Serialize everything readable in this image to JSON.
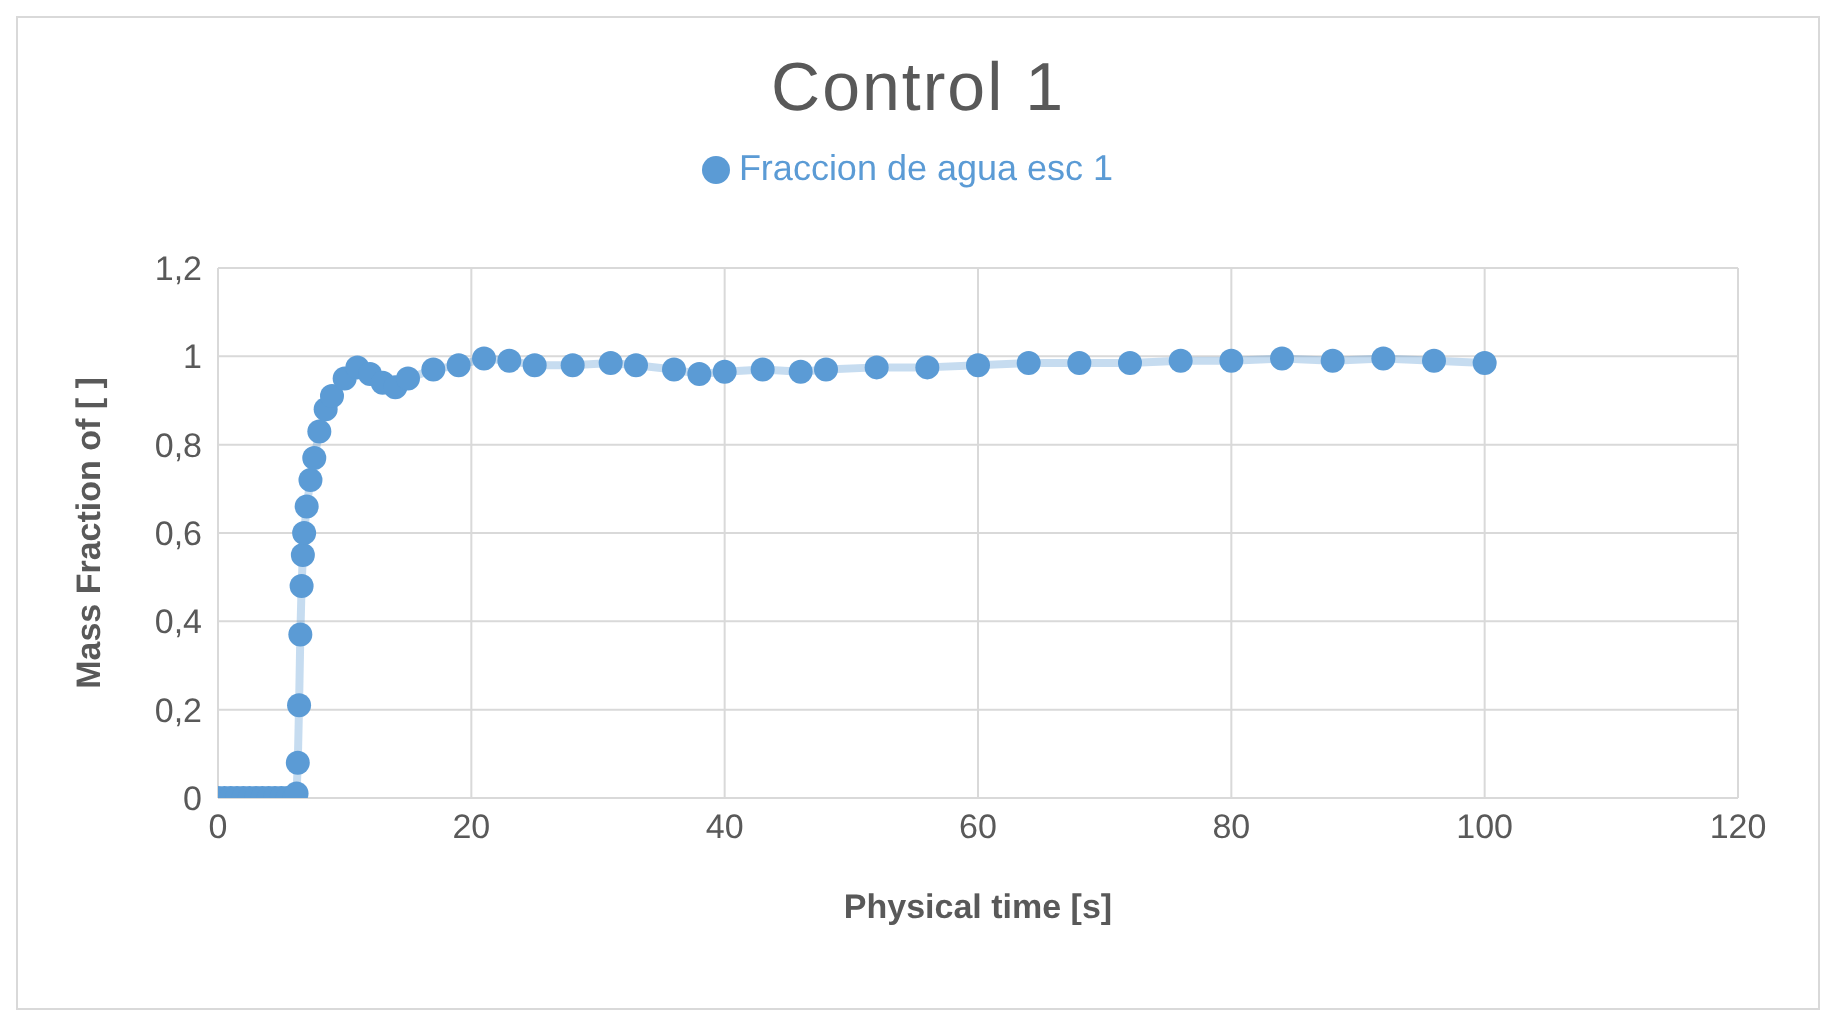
{
  "chart_data": {
    "type": "line",
    "title": "Control 1",
    "xlabel": "Physical time [s]",
    "ylabel": "Mass Fraction of  [ ]",
    "x": [
      0,
      0.5,
      1,
      1.5,
      2,
      2.5,
      3,
      3.5,
      4,
      4.5,
      5,
      5.5,
      6,
      6.2,
      6.3,
      6.4,
      6.5,
      6.6,
      6.7,
      6.8,
      7,
      7.3,
      7.6,
      8,
      8.5,
      9,
      10,
      11,
      12,
      13,
      14,
      15,
      17,
      19,
      21,
      23,
      25,
      28,
      31,
      33,
      36,
      38,
      40,
      43,
      46,
      48,
      52,
      56,
      60,
      64,
      68,
      72,
      76,
      80,
      84,
      88,
      92,
      96,
      100
    ],
    "series": [
      {
        "name": "Fraccion de agua esc 1",
        "color": "#5b9bd5",
        "values": [
          0,
          0,
          0,
          0,
          0,
          0,
          0,
          0,
          0,
          0,
          0,
          0,
          0,
          0.01,
          0.08,
          0.21,
          0.37,
          0.48,
          0.55,
          0.6,
          0.66,
          0.72,
          0.77,
          0.83,
          0.88,
          0.91,
          0.95,
          0.975,
          0.96,
          0.94,
          0.93,
          0.95,
          0.97,
          0.98,
          0.995,
          0.99,
          0.98,
          0.98,
          0.985,
          0.98,
          0.97,
          0.96,
          0.965,
          0.97,
          0.965,
          0.97,
          0.975,
          0.975,
          0.98,
          0.985,
          0.985,
          0.985,
          0.99,
          0.99,
          0.995,
          0.99,
          0.995,
          0.99,
          0.985
        ]
      }
    ],
    "xlim": [
      0,
      120
    ],
    "xticks": [
      0,
      20,
      40,
      60,
      80,
      100,
      120
    ],
    "ylim": [
      0,
      1.2
    ],
    "yticks": [
      0,
      {
        "value": 0.2,
        "label": "0,2"
      },
      {
        "value": 0.4,
        "label": "0,4"
      },
      {
        "value": 0.6,
        "label": "0,6"
      },
      {
        "value": 0.8,
        "label": "0,8"
      },
      1,
      {
        "value": 1.2,
        "label": "1,2"
      }
    ],
    "grid": true,
    "legend": "top",
    "marker": "circle",
    "line_style": "solid"
  }
}
